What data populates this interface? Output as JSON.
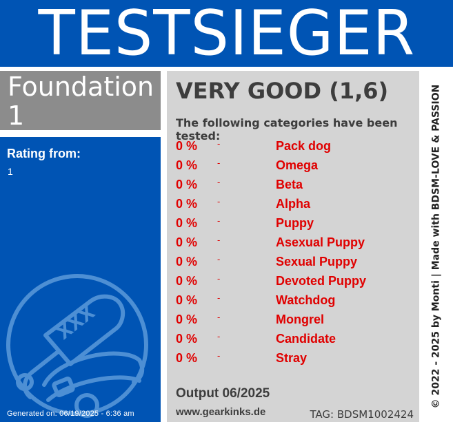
{
  "banner": {
    "title": "TESTSIEGER"
  },
  "product": {
    "name": "Foundation 1"
  },
  "rating": {
    "label": "Rating from:",
    "value": "1"
  },
  "card": {
    "verdict": "VERY GOOD (1,6)",
    "intro": "The following categories have been tested:",
    "categories": [
      {
        "percent": "0 %",
        "dash": "-",
        "name": "Pack dog"
      },
      {
        "percent": "0 %",
        "dash": "-",
        "name": "Omega"
      },
      {
        "percent": "0 %",
        "dash": "-",
        "name": "Beta"
      },
      {
        "percent": "0 %",
        "dash": "-",
        "name": "Alpha"
      },
      {
        "percent": "0 %",
        "dash": "-",
        "name": "Puppy"
      },
      {
        "percent": "0 %",
        "dash": "-",
        "name": "Asexual Puppy"
      },
      {
        "percent": "0 %",
        "dash": "-",
        "name": "Sexual Puppy"
      },
      {
        "percent": "0 %",
        "dash": "-",
        "name": "Devoted Puppy"
      },
      {
        "percent": "0 %",
        "dash": "-",
        "name": "Watchdog"
      },
      {
        "percent": "0 %",
        "dash": "-",
        "name": "Mongrel"
      },
      {
        "percent": "0 %",
        "dash": "-",
        "name": "Candidate"
      },
      {
        "percent": "0 %",
        "dash": "-",
        "name": "Stray"
      }
    ],
    "output": "Output 06/2025",
    "website": "www.gearkinks.de",
    "tag": "TAG: BDSM1002424"
  },
  "footer": {
    "generated": "Generated on: 06/19/2025 - 6:36 am",
    "copyright": "© 2022 - 2025 by Monti | Made with BDSM-LOVE & PASSION"
  },
  "emblem": {
    "paddle_text": "XXX",
    "icon": "paddle-collar-icon"
  },
  "colors": {
    "brand_blue": "#0054b4",
    "product_gray": "#8c8c8c",
    "card_gray": "#d4d4d4",
    "category_red": "#e00000",
    "text_dark": "#3d3d3d"
  }
}
